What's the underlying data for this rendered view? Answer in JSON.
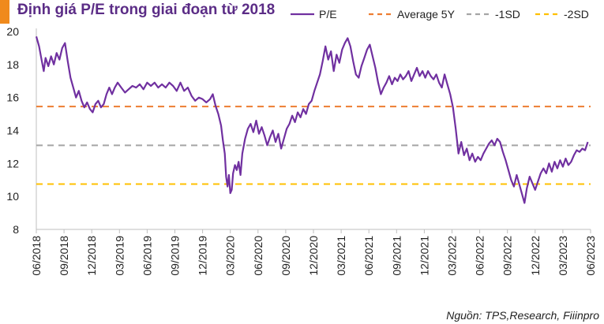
{
  "colors": {
    "title": "#5b2c86",
    "title_accent": "#f08a1c",
    "pe_line": "#7030a0",
    "average": "#ed7d31",
    "minus1sd": "#a5a5a5",
    "minus2sd": "#ffc000"
  },
  "chart_data": {
    "type": "line",
    "title": "Định giá P/E trong giai đoạn từ 2018",
    "source": "Nguồn: TPS,Research, Fiiinpro",
    "ylim": [
      8,
      20
    ],
    "yticks": [
      8,
      10,
      12,
      14,
      16,
      18,
      20
    ],
    "x_range": [
      0,
      60
    ],
    "xticks": [
      {
        "label": "06/2018",
        "t": 0
      },
      {
        "label": "09/2018",
        "t": 3
      },
      {
        "label": "12/2018",
        "t": 6
      },
      {
        "label": "03/2019",
        "t": 9
      },
      {
        "label": "06/2019",
        "t": 12
      },
      {
        "label": "09/2019",
        "t": 15
      },
      {
        "label": "12/2019",
        "t": 18
      },
      {
        "label": "03/2020",
        "t": 21
      },
      {
        "label": "06/2020",
        "t": 24
      },
      {
        "label": "09/2020",
        "t": 27
      },
      {
        "label": "12/2020",
        "t": 30
      },
      {
        "label": "03/2021",
        "t": 33
      },
      {
        "label": "06/2021",
        "t": 36
      },
      {
        "label": "09/2021",
        "t": 39
      },
      {
        "label": "12/2021",
        "t": 42
      },
      {
        "label": "03/2022",
        "t": 45
      },
      {
        "label": "06/2022",
        "t": 48
      },
      {
        "label": "09/2022",
        "t": 51
      },
      {
        "label": "12/2022",
        "t": 54
      },
      {
        "label": "03/2023",
        "t": 57
      },
      {
        "label": "06/2023",
        "t": 60
      }
    ],
    "legend": [
      "P/E",
      "Average 5Y",
      "-1SD",
      "-2SD"
    ],
    "series": [
      {
        "name": "P/E",
        "style": "solid",
        "points": [
          [
            0,
            19.7
          ],
          [
            0.3,
            19.1
          ],
          [
            0.6,
            18.2
          ],
          [
            0.8,
            17.6
          ],
          [
            1.0,
            18.4
          ],
          [
            1.3,
            17.9
          ],
          [
            1.6,
            18.5
          ],
          [
            1.9,
            18.0
          ],
          [
            2.2,
            18.7
          ],
          [
            2.5,
            18.3
          ],
          [
            2.8,
            19.0
          ],
          [
            3.1,
            19.3
          ],
          [
            3.4,
            18.2
          ],
          [
            3.7,
            17.2
          ],
          [
            4.0,
            16.6
          ],
          [
            4.3,
            16.0
          ],
          [
            4.6,
            16.4
          ],
          [
            4.9,
            15.8
          ],
          [
            5.2,
            15.4
          ],
          [
            5.5,
            15.7
          ],
          [
            5.8,
            15.3
          ],
          [
            6.1,
            15.1
          ],
          [
            6.4,
            15.6
          ],
          [
            6.7,
            15.8
          ],
          [
            7.0,
            15.4
          ],
          [
            7.3,
            15.6
          ],
          [
            7.6,
            16.2
          ],
          [
            7.9,
            16.6
          ],
          [
            8.2,
            16.2
          ],
          [
            8.5,
            16.6
          ],
          [
            8.8,
            16.9
          ],
          [
            9.2,
            16.6
          ],
          [
            9.6,
            16.3
          ],
          [
            10.0,
            16.5
          ],
          [
            10.4,
            16.7
          ],
          [
            10.8,
            16.6
          ],
          [
            11.2,
            16.8
          ],
          [
            11.6,
            16.5
          ],
          [
            12.0,
            16.9
          ],
          [
            12.4,
            16.7
          ],
          [
            12.8,
            16.9
          ],
          [
            13.2,
            16.6
          ],
          [
            13.6,
            16.8
          ],
          [
            14.0,
            16.6
          ],
          [
            14.4,
            16.9
          ],
          [
            14.8,
            16.7
          ],
          [
            15.2,
            16.4
          ],
          [
            15.6,
            16.9
          ],
          [
            16.0,
            16.4
          ],
          [
            16.4,
            16.6
          ],
          [
            16.8,
            16.1
          ],
          [
            17.2,
            15.8
          ],
          [
            17.6,
            16.0
          ],
          [
            18.0,
            15.9
          ],
          [
            18.4,
            15.7
          ],
          [
            18.8,
            15.9
          ],
          [
            19.1,
            16.2
          ],
          [
            19.4,
            15.5
          ],
          [
            19.7,
            15.0
          ],
          [
            20.0,
            14.3
          ],
          [
            20.2,
            13.4
          ],
          [
            20.4,
            12.6
          ],
          [
            20.55,
            11.2
          ],
          [
            20.7,
            10.6
          ],
          [
            20.85,
            11.3
          ],
          [
            21.0,
            10.2
          ],
          [
            21.15,
            10.4
          ],
          [
            21.3,
            11.4
          ],
          [
            21.5,
            11.9
          ],
          [
            21.7,
            11.6
          ],
          [
            21.9,
            12.1
          ],
          [
            22.1,
            11.3
          ],
          [
            22.3,
            12.6
          ],
          [
            22.6,
            13.5
          ],
          [
            22.9,
            14.1
          ],
          [
            23.2,
            14.4
          ],
          [
            23.5,
            13.9
          ],
          [
            23.8,
            14.6
          ],
          [
            24.1,
            13.8
          ],
          [
            24.4,
            14.2
          ],
          [
            24.7,
            13.7
          ],
          [
            25.0,
            13.1
          ],
          [
            25.3,
            13.6
          ],
          [
            25.6,
            14.0
          ],
          [
            25.9,
            13.3
          ],
          [
            26.2,
            13.8
          ],
          [
            26.5,
            12.9
          ],
          [
            26.8,
            13.5
          ],
          [
            27.1,
            14.1
          ],
          [
            27.4,
            14.4
          ],
          [
            27.7,
            14.9
          ],
          [
            28.0,
            14.5
          ],
          [
            28.3,
            15.1
          ],
          [
            28.6,
            14.8
          ],
          [
            28.9,
            15.3
          ],
          [
            29.2,
            15.0
          ],
          [
            29.5,
            15.6
          ],
          [
            29.8,
            15.8
          ],
          [
            30.1,
            16.4
          ],
          [
            30.4,
            16.9
          ],
          [
            30.7,
            17.4
          ],
          [
            31.0,
            18.2
          ],
          [
            31.3,
            19.1
          ],
          [
            31.6,
            18.3
          ],
          [
            31.9,
            18.8
          ],
          [
            32.2,
            17.6
          ],
          [
            32.5,
            18.6
          ],
          [
            32.8,
            18.1
          ],
          [
            33.1,
            18.9
          ],
          [
            33.4,
            19.3
          ],
          [
            33.7,
            19.6
          ],
          [
            34.0,
            19.1
          ],
          [
            34.3,
            18.2
          ],
          [
            34.6,
            17.4
          ],
          [
            34.9,
            17.2
          ],
          [
            35.2,
            17.9
          ],
          [
            35.5,
            18.4
          ],
          [
            35.8,
            18.9
          ],
          [
            36.1,
            19.2
          ],
          [
            36.4,
            18.5
          ],
          [
            36.7,
            17.8
          ],
          [
            37.0,
            16.9
          ],
          [
            37.3,
            16.2
          ],
          [
            37.6,
            16.6
          ],
          [
            37.9,
            16.9
          ],
          [
            38.2,
            17.3
          ],
          [
            38.5,
            16.8
          ],
          [
            38.8,
            17.2
          ],
          [
            39.1,
            17.0
          ],
          [
            39.4,
            17.4
          ],
          [
            39.7,
            17.1
          ],
          [
            40.0,
            17.3
          ],
          [
            40.3,
            17.6
          ],
          [
            40.6,
            17.0
          ],
          [
            40.9,
            17.4
          ],
          [
            41.2,
            17.8
          ],
          [
            41.5,
            17.3
          ],
          [
            41.8,
            17.6
          ],
          [
            42.1,
            17.2
          ],
          [
            42.4,
            17.6
          ],
          [
            42.7,
            17.3
          ],
          [
            43.0,
            17.1
          ],
          [
            43.3,
            17.4
          ],
          [
            43.6,
            16.9
          ],
          [
            43.9,
            16.6
          ],
          [
            44.2,
            17.4
          ],
          [
            44.5,
            16.8
          ],
          [
            44.8,
            16.2
          ],
          [
            45.1,
            15.4
          ],
          [
            45.4,
            14.1
          ],
          [
            45.7,
            12.6
          ],
          [
            46.0,
            13.3
          ],
          [
            46.3,
            12.5
          ],
          [
            46.6,
            12.9
          ],
          [
            46.9,
            12.2
          ],
          [
            47.2,
            12.6
          ],
          [
            47.5,
            12.1
          ],
          [
            47.8,
            12.4
          ],
          [
            48.1,
            12.2
          ],
          [
            48.4,
            12.6
          ],
          [
            48.7,
            12.9
          ],
          [
            49.0,
            13.2
          ],
          [
            49.3,
            13.4
          ],
          [
            49.6,
            13.1
          ],
          [
            49.9,
            13.5
          ],
          [
            50.2,
            13.3
          ],
          [
            50.5,
            12.7
          ],
          [
            50.8,
            12.2
          ],
          [
            51.1,
            11.6
          ],
          [
            51.4,
            11.0
          ],
          [
            51.7,
            10.6
          ],
          [
            52.0,
            11.3
          ],
          [
            52.3,
            10.7
          ],
          [
            52.6,
            10.1
          ],
          [
            52.85,
            9.6
          ],
          [
            53.1,
            10.5
          ],
          [
            53.4,
            11.2
          ],
          [
            53.7,
            10.8
          ],
          [
            54.0,
            10.4
          ],
          [
            54.3,
            10.9
          ],
          [
            54.6,
            11.4
          ],
          [
            54.9,
            11.7
          ],
          [
            55.2,
            11.4
          ],
          [
            55.5,
            12.0
          ],
          [
            55.8,
            11.5
          ],
          [
            56.1,
            12.1
          ],
          [
            56.4,
            11.7
          ],
          [
            56.7,
            12.2
          ],
          [
            57.0,
            11.8
          ],
          [
            57.3,
            12.3
          ],
          [
            57.6,
            11.9
          ],
          [
            57.9,
            12.1
          ],
          [
            58.2,
            12.5
          ],
          [
            58.5,
            12.8
          ],
          [
            58.8,
            12.7
          ],
          [
            59.1,
            12.9
          ],
          [
            59.4,
            12.8
          ],
          [
            59.7,
            13.3
          ]
        ]
      },
      {
        "name": "Average 5Y",
        "style": "dashed",
        "value": 15.45
      },
      {
        "name": "-1SD",
        "style": "dashed",
        "value": 13.1
      },
      {
        "name": "-2SD",
        "style": "dashed",
        "value": 10.75
      }
    ]
  }
}
